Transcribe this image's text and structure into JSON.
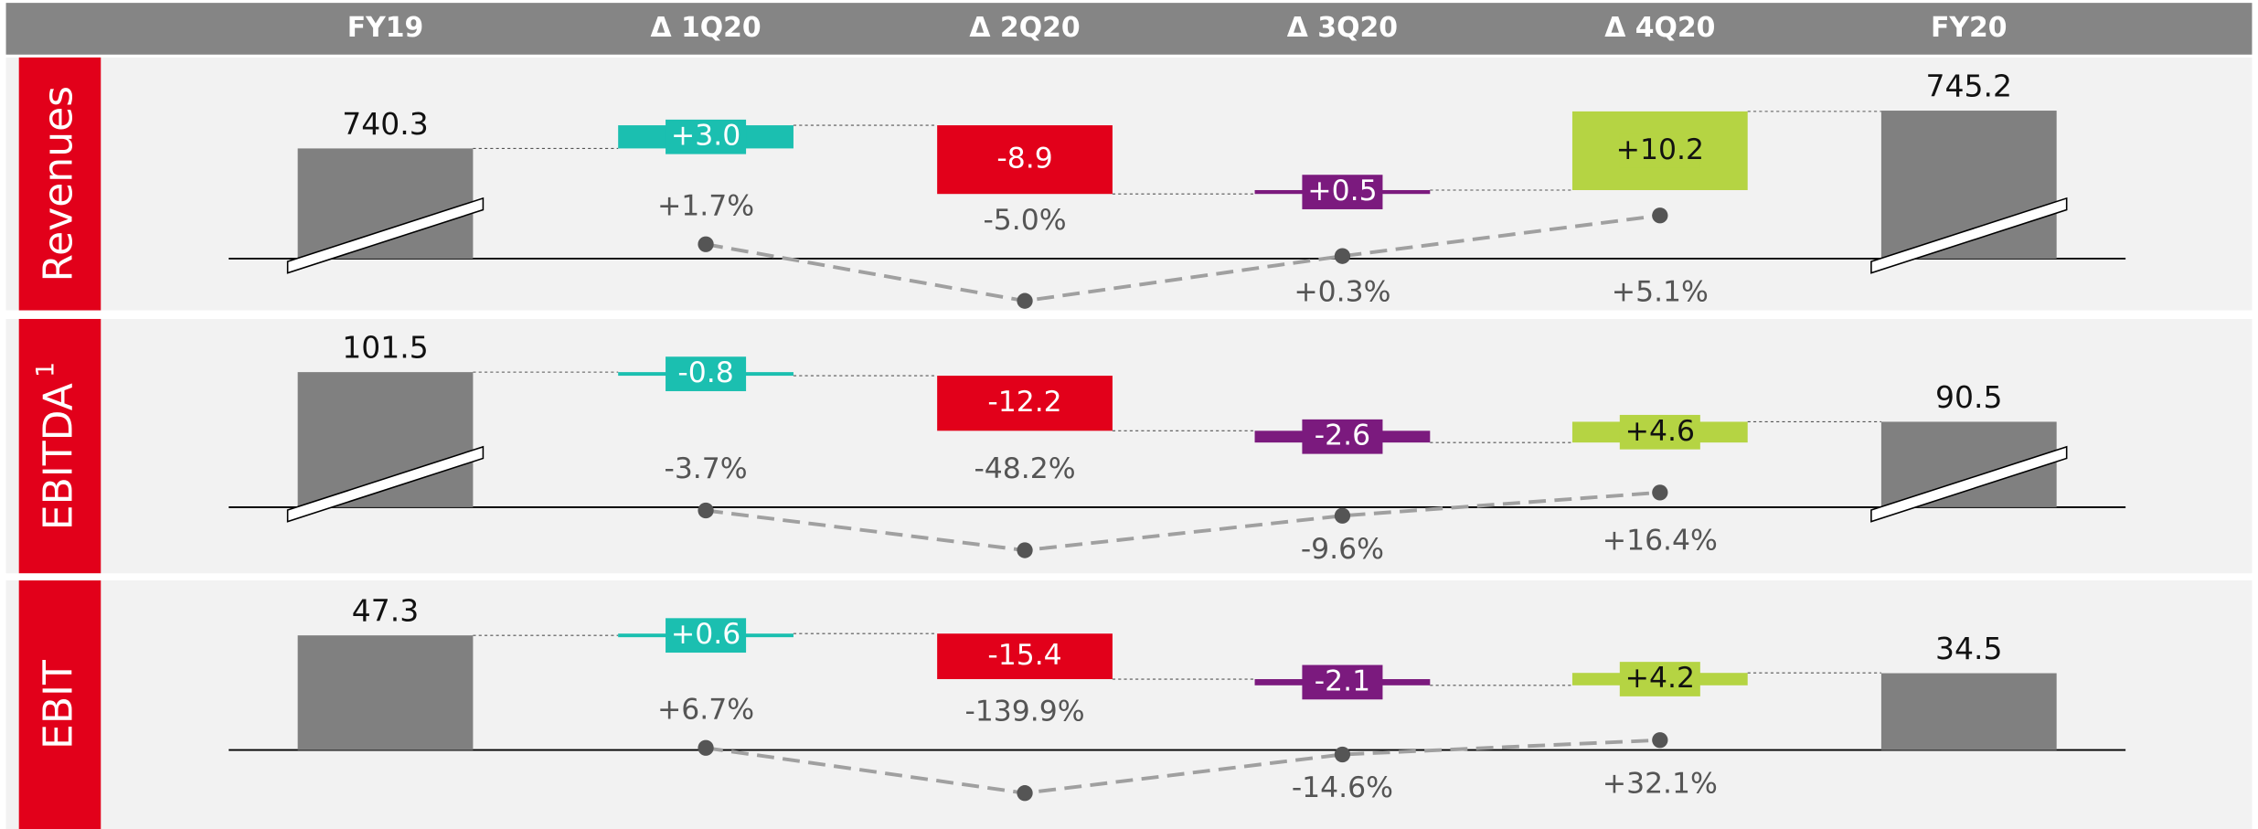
{
  "header": {
    "categories": [
      "FY19",
      "Δ 1Q20",
      "Δ 2Q20",
      "Δ 3Q20",
      "Δ 4Q20",
      "FY20"
    ]
  },
  "chart_data": [
    {
      "type": "waterfall",
      "title": "Revenues",
      "start": 740.3,
      "end": 745.2,
      "axis_break": true,
      "deltas": [
        3.0,
        -8.9,
        0.5,
        10.2
      ],
      "value_labels": [
        "+3.0",
        "-8.9",
        "+0.5",
        "+10.2"
      ],
      "growth": [
        1.7,
        -5.0,
        0.3,
        5.1
      ],
      "growth_labels": [
        "+1.7%",
        "-5.0%",
        "+0.3%",
        "+5.1%"
      ]
    },
    {
      "type": "waterfall",
      "title": "EBITDA",
      "title_note": "1",
      "start": 101.5,
      "end": 90.5,
      "axis_break": true,
      "deltas": [
        -0.8,
        -12.2,
        -2.6,
        4.6
      ],
      "value_labels": [
        "-0.8",
        "-12.2",
        "-2.6",
        "+4.6"
      ],
      "growth": [
        -3.7,
        -48.2,
        -9.6,
        16.4
      ],
      "growth_labels": [
        "-3.7%",
        "-48.2%",
        "-9.6%",
        "+16.4%"
      ]
    },
    {
      "type": "waterfall",
      "title": "EBIT",
      "start": 47.3,
      "end": 34.5,
      "axis_break": false,
      "deltas": [
        0.6,
        -15.4,
        -2.1,
        4.2
      ],
      "value_labels": [
        "+0.6",
        "-15.4",
        "-2.1",
        "+4.2"
      ],
      "growth": [
        6.7,
        -139.9,
        -14.6,
        32.1
      ],
      "growth_labels": [
        "+6.7%",
        "-139.9%",
        "-14.6%",
        "+32.1%"
      ]
    }
  ],
  "colors": {
    "total": "#808080",
    "deltas": [
      "#1bbfb0",
      "#e2001a",
      "#7b1a7e",
      "#b5d443"
    ]
  }
}
